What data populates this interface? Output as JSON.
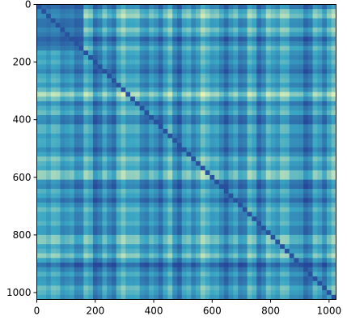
{
  "chart_data": {
    "type": "heatmap",
    "title": "",
    "xlabel": "",
    "ylabel": "",
    "xlim": [
      0,
      1024
    ],
    "ylim": [
      1024,
      0
    ],
    "x_ticks": [
      0,
      200,
      400,
      600,
      800,
      1000
    ],
    "y_ticks": [
      0,
      200,
      400,
      600,
      800,
      1000
    ],
    "x_tick_labels": [
      "0",
      "200",
      "400",
      "600",
      "800",
      "1000"
    ],
    "y_tick_labels": [
      "0",
      "200",
      "400",
      "600",
      "800",
      "1000"
    ],
    "colormap": "YlGnBu",
    "colors": {
      "low": "#27489a",
      "mid": "#3aa7c4",
      "high": "#e8f6b8"
    },
    "grid": false,
    "legend": "none"
  }
}
